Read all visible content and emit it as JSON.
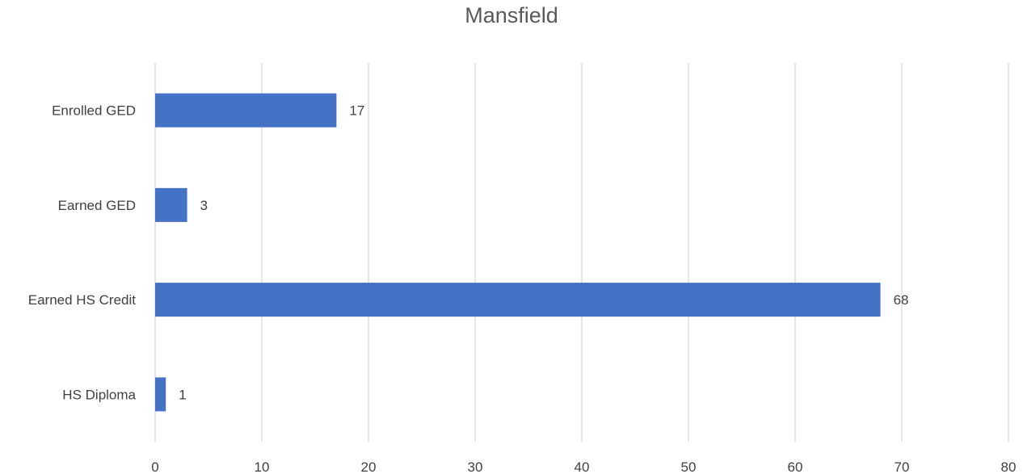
{
  "chart_data": {
    "type": "bar",
    "orientation": "horizontal",
    "title": "Mansfield",
    "categories": [
      "Enrolled GED",
      "Earned GED",
      "Earned HS Credit",
      "HS Diploma"
    ],
    "values": [
      17,
      3,
      68,
      1
    ],
    "data_labels": [
      "17",
      "3",
      "68",
      "1"
    ],
    "xlim": [
      0,
      80
    ],
    "x_ticks": [
      0,
      10,
      20,
      30,
      40,
      50,
      60,
      70,
      80
    ],
    "x_tick_labels": [
      "0",
      "10",
      "20",
      "30",
      "40",
      "50",
      "60",
      "70",
      "80"
    ],
    "grid": "vertical",
    "legend": "none",
    "colors": {
      "bar": "#4472C4",
      "grid": "#D9D9D9",
      "text": "#404040",
      "title": "#595959"
    }
  }
}
